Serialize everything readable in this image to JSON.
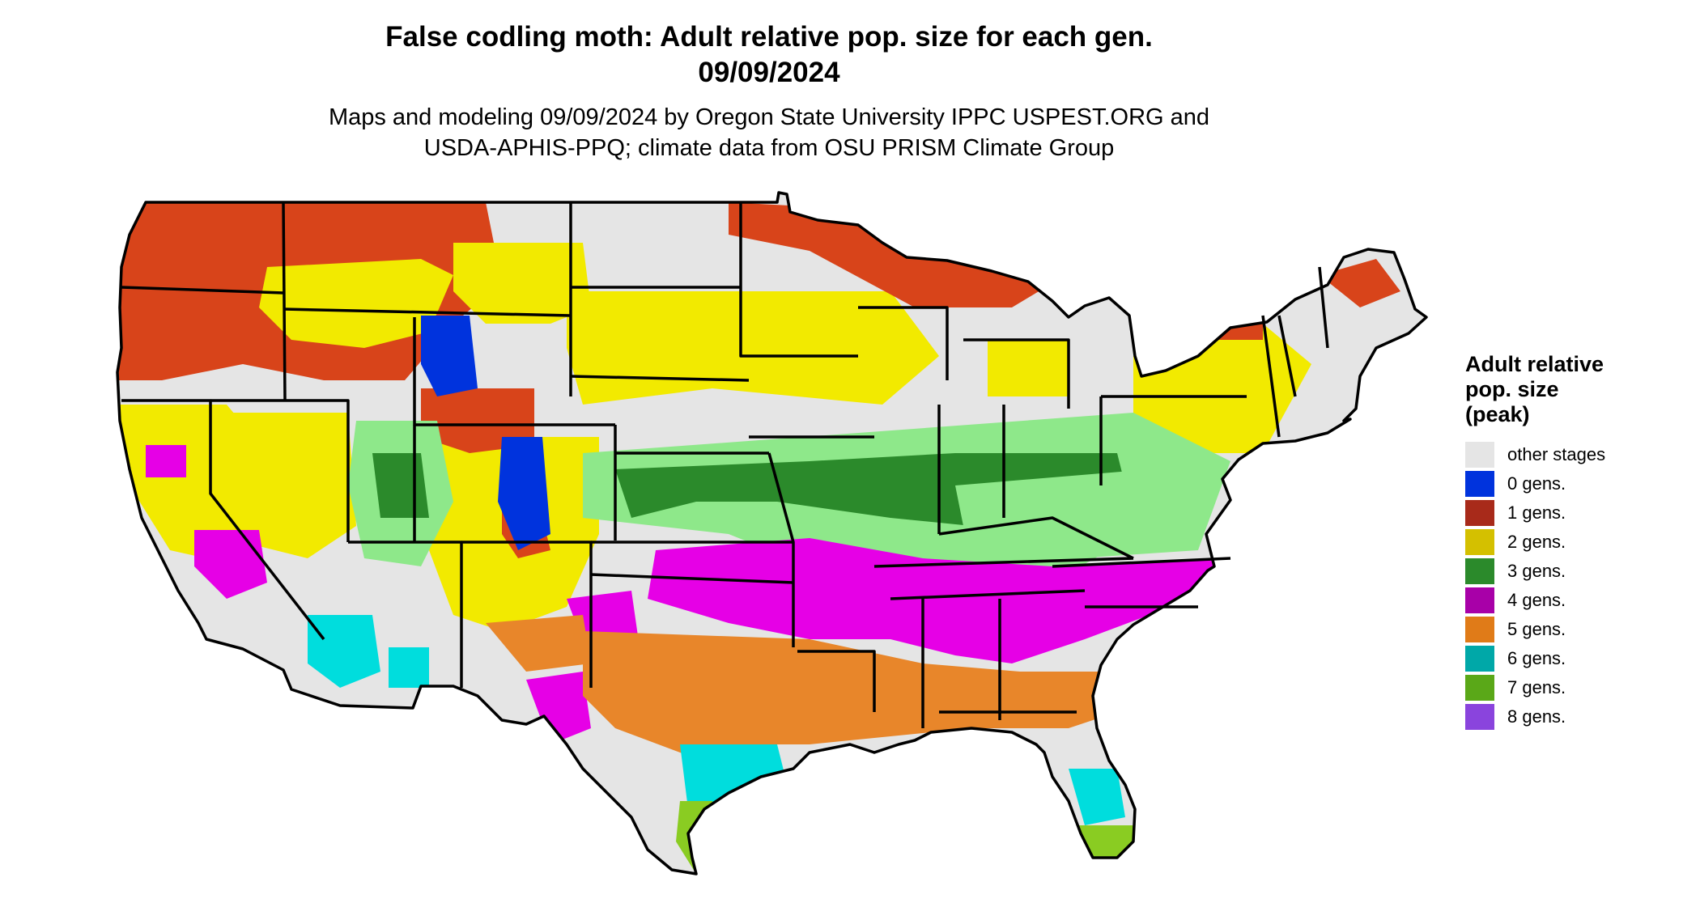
{
  "title": {
    "line1": "False codling moth: Adult relative pop. size for each gen.",
    "line2": "09/09/2024"
  },
  "subtitle": {
    "line1": "Maps and modeling 09/09/2024 by Oregon State University IPPC USPEST.ORG and",
    "line2": "USDA-APHIS-PPQ; climate data from OSU PRISM Climate Group"
  },
  "legend": {
    "title": [
      "Adult relative",
      "pop. size",
      "(peak)"
    ],
    "items": [
      {
        "label": "other stages",
        "color": "#e5e5e5"
      },
      {
        "label": "0 gens.",
        "color": "#0033dd"
      },
      {
        "label": "1 gens.",
        "color": "#a82a1a"
      },
      {
        "label": "2 gens.",
        "color": "#d4c000"
      },
      {
        "label": "3 gens.",
        "color": "#2b8a2b"
      },
      {
        "label": "4 gens.",
        "color": "#a800a8"
      },
      {
        "label": "5 gens.",
        "color": "#e07b18"
      },
      {
        "label": "6 gens.",
        "color": "#00a8a8"
      },
      {
        "label": "7 gens.",
        "color": "#5aa818"
      },
      {
        "label": "8 gens.",
        "color": "#8a44dd"
      }
    ]
  },
  "map": {
    "background": "#e5e5e5",
    "region_colors": {
      "red": "#d8441a",
      "yellow": "#f2ea00",
      "lightgreen": "#8ee88a",
      "green": "#2b8a2b",
      "magenta": "#e600e6",
      "orange": "#e8862a",
      "cyan": "#00dddd",
      "lime": "#8acc22",
      "blue": "#0033dd"
    }
  }
}
